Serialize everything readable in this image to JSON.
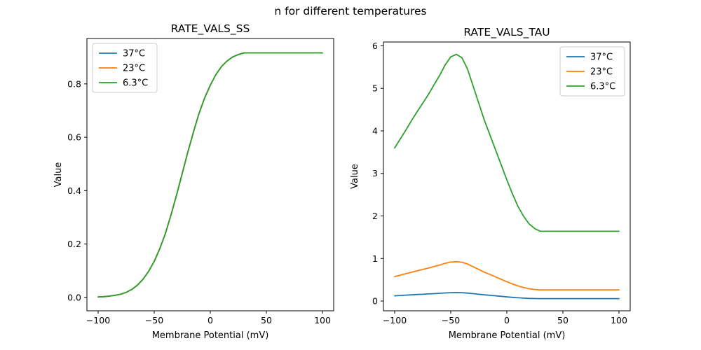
{
  "figure": {
    "suptitle": "n for different temperatures",
    "background": "#ffffff"
  },
  "colors": {
    "series_blue": "#1f77b4",
    "series_orange": "#ff7f0e",
    "series_green": "#2ca02c",
    "spine": "#000000",
    "legend_edge": "#cccccc",
    "legend_face": "#ffffff",
    "text": "#000000"
  },
  "chart_data": [
    {
      "type": "line",
      "title": "RATE_VALS_SS",
      "xlabel": "Membrane Potential (mV)",
      "ylabel": "Value",
      "xlim": [
        -110,
        110
      ],
      "ylim": [
        -0.05,
        0.97
      ],
      "grid": false,
      "xticks": {
        "values": [
          -100,
          -50,
          0,
          50,
          100
        ],
        "labels": [
          "−100",
          "−50",
          "0",
          "50",
          "100"
        ]
      },
      "yticks": {
        "values": [
          0.0,
          0.2,
          0.4,
          0.6,
          0.8
        ],
        "labels": [
          "0.0",
          "0.2",
          "0.4",
          "0.6",
          "0.8"
        ]
      },
      "legend": {
        "position": "upper-left",
        "entries": [
          "37°C",
          "23°C",
          "6.3°C"
        ]
      },
      "note": "all three temperature curves overlap exactly; green (drawn last) is visible",
      "x": [
        -100,
        -95,
        -90,
        -85,
        -80,
        -75,
        -70,
        -65,
        -60,
        -55,
        -50,
        -45,
        -40,
        -35,
        -30,
        -25,
        -20,
        -15,
        -10,
        -5,
        0,
        5,
        10,
        15,
        20,
        25,
        30,
        35,
        40,
        45,
        50,
        55,
        60,
        65,
        70,
        75,
        80,
        85,
        90,
        95,
        100
      ],
      "series": [
        {
          "name": "37°C",
          "color": "#1f77b4",
          "values": [
            0.002,
            0.003,
            0.005,
            0.008,
            0.012,
            0.019,
            0.03,
            0.046,
            0.068,
            0.098,
            0.135,
            0.183,
            0.24,
            0.31,
            0.385,
            0.465,
            0.545,
            0.62,
            0.69,
            0.748,
            0.795,
            0.835,
            0.865,
            0.886,
            0.901,
            0.91,
            0.916,
            0.916,
            0.916,
            0.916,
            0.916,
            0.916,
            0.916,
            0.916,
            0.916,
            0.916,
            0.916,
            0.916,
            0.916,
            0.916,
            0.916
          ]
        },
        {
          "name": "23°C",
          "color": "#ff7f0e",
          "values": [
            0.002,
            0.003,
            0.005,
            0.008,
            0.012,
            0.019,
            0.03,
            0.046,
            0.068,
            0.098,
            0.135,
            0.183,
            0.24,
            0.31,
            0.385,
            0.465,
            0.545,
            0.62,
            0.69,
            0.748,
            0.795,
            0.835,
            0.865,
            0.886,
            0.901,
            0.91,
            0.916,
            0.916,
            0.916,
            0.916,
            0.916,
            0.916,
            0.916,
            0.916,
            0.916,
            0.916,
            0.916,
            0.916,
            0.916,
            0.916,
            0.916
          ]
        },
        {
          "name": "6.3°C",
          "color": "#2ca02c",
          "values": [
            0.002,
            0.003,
            0.005,
            0.008,
            0.012,
            0.019,
            0.03,
            0.046,
            0.068,
            0.098,
            0.135,
            0.183,
            0.24,
            0.31,
            0.385,
            0.465,
            0.545,
            0.62,
            0.69,
            0.748,
            0.795,
            0.835,
            0.865,
            0.886,
            0.901,
            0.91,
            0.916,
            0.916,
            0.916,
            0.916,
            0.916,
            0.916,
            0.916,
            0.916,
            0.916,
            0.916,
            0.916,
            0.916,
            0.916,
            0.916,
            0.916
          ]
        }
      ]
    },
    {
      "type": "line",
      "title": "RATE_VALS_TAU",
      "xlabel": "Membrane Potential (mV)",
      "ylabel": "Value",
      "xlim": [
        -110,
        110
      ],
      "ylim": [
        -0.23,
        6.09
      ],
      "grid": false,
      "xticks": {
        "values": [
          -100,
          -50,
          0,
          50,
          100
        ],
        "labels": [
          "−100",
          "−50",
          "0",
          "50",
          "100"
        ]
      },
      "yticks": {
        "values": [
          0,
          1,
          2,
          3,
          4,
          5,
          6
        ],
        "labels": [
          "0",
          "1",
          "2",
          "3",
          "4",
          "5",
          "6"
        ]
      },
      "legend": {
        "position": "upper-right",
        "entries": [
          "37°C",
          "23°C",
          "6.3°C"
        ]
      },
      "note": "tau curves scaled by temperature factor; green peaks ~5.8 at -48 mV, flattens at ~1.64 from +30 mV",
      "x": [
        -100,
        -95,
        -90,
        -85,
        -80,
        -75,
        -70,
        -65,
        -60,
        -55,
        -50,
        -45,
        -40,
        -35,
        -30,
        -25,
        -20,
        -15,
        -10,
        -5,
        0,
        5,
        10,
        15,
        20,
        25,
        30,
        35,
        40,
        45,
        50,
        55,
        60,
        65,
        70,
        75,
        80,
        85,
        90,
        95,
        100
      ],
      "series": [
        {
          "name": "37°C",
          "color": "#1f77b4",
          "values": [
            0.123,
            0.131,
            0.138,
            0.145,
            0.153,
            0.159,
            0.166,
            0.174,
            0.182,
            0.19,
            0.197,
            0.199,
            0.196,
            0.187,
            0.173,
            0.159,
            0.146,
            0.134,
            0.122,
            0.11,
            0.098,
            0.086,
            0.076,
            0.068,
            0.062,
            0.058,
            0.056,
            0.056,
            0.056,
            0.056,
            0.056,
            0.056,
            0.056,
            0.056,
            0.056,
            0.056,
            0.056,
            0.056,
            0.056,
            0.056,
            0.056
          ]
        },
        {
          "name": "23°C",
          "color": "#ff7f0e",
          "values": [
            0.575,
            0.608,
            0.642,
            0.677,
            0.71,
            0.742,
            0.774,
            0.811,
            0.846,
            0.886,
            0.916,
            0.926,
            0.913,
            0.87,
            0.806,
            0.742,
            0.679,
            0.623,
            0.567,
            0.511,
            0.455,
            0.402,
            0.354,
            0.318,
            0.289,
            0.271,
            0.262,
            0.262,
            0.262,
            0.262,
            0.262,
            0.262,
            0.262,
            0.262,
            0.262,
            0.262,
            0.262,
            0.262,
            0.262,
            0.262,
            0.262
          ]
        },
        {
          "name": "6.3°C",
          "color": "#2ca02c",
          "values": [
            3.6,
            3.81,
            4.02,
            4.24,
            4.45,
            4.65,
            4.85,
            5.08,
            5.3,
            5.55,
            5.74,
            5.8,
            5.72,
            5.45,
            5.05,
            4.65,
            4.25,
            3.9,
            3.55,
            3.2,
            2.85,
            2.52,
            2.22,
            1.99,
            1.81,
            1.7,
            1.64,
            1.64,
            1.64,
            1.64,
            1.64,
            1.64,
            1.64,
            1.64,
            1.64,
            1.64,
            1.64,
            1.64,
            1.64,
            1.64,
            1.64
          ]
        }
      ]
    }
  ]
}
